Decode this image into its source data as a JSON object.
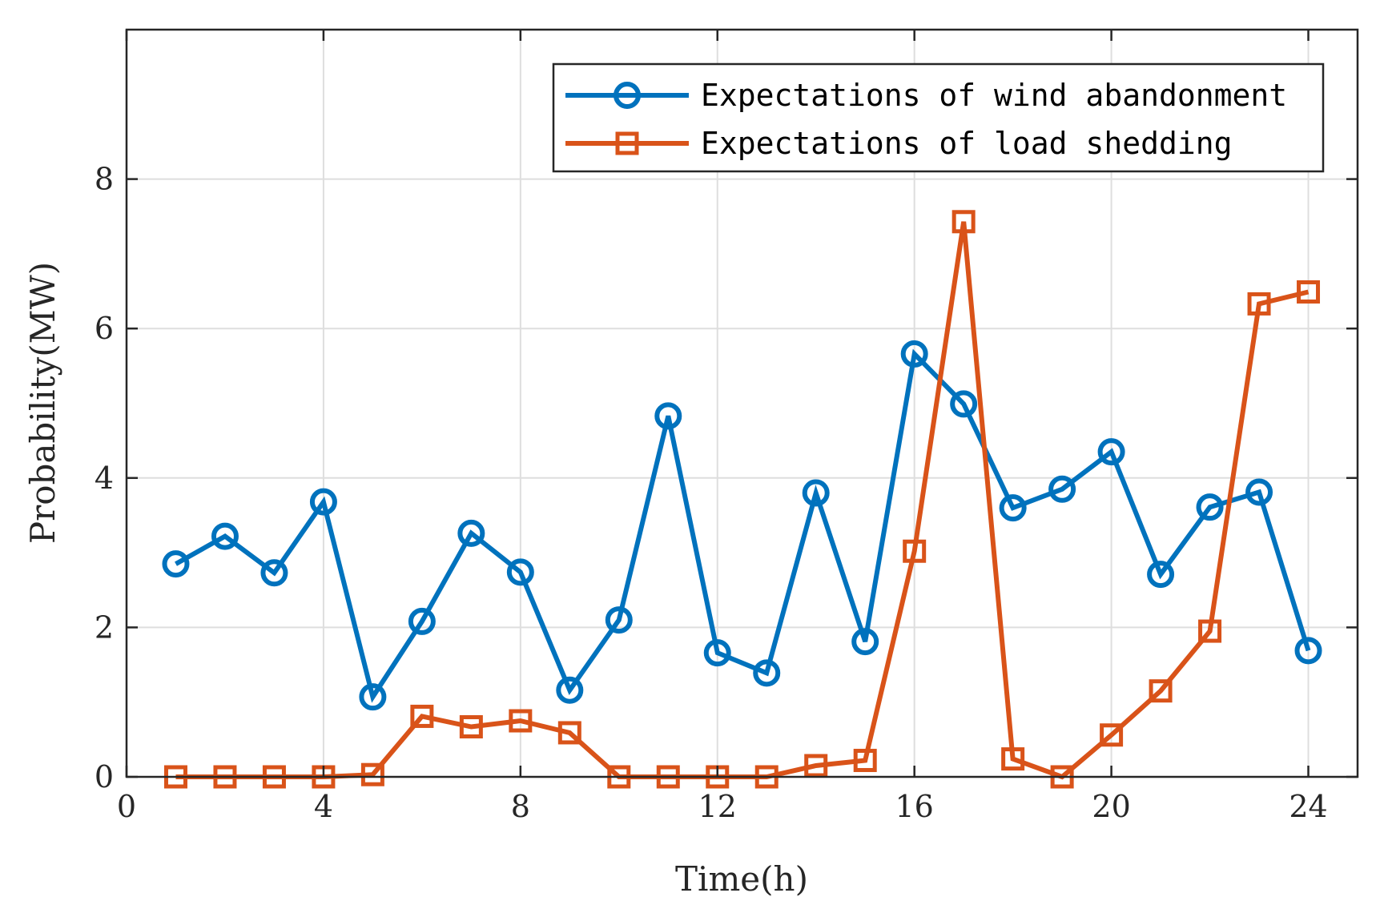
{
  "chart_data": {
    "type": "line",
    "title": "",
    "xlabel": "Time(h)",
    "ylabel": "Probability(MW)",
    "xlim": [
      0,
      25
    ],
    "ylim": [
      0,
      10
    ],
    "xticks": [
      0,
      4,
      8,
      12,
      16,
      20,
      24
    ],
    "yticks": [
      0,
      2,
      4,
      6,
      8
    ],
    "grid": true,
    "legend_position": "top-right",
    "x": [
      1,
      2,
      3,
      4,
      5,
      6,
      7,
      8,
      9,
      10,
      11,
      12,
      13,
      14,
      15,
      16,
      17,
      18,
      19,
      20,
      21,
      22,
      23,
      24
    ],
    "series": [
      {
        "name": "Expectations of wind abandonment",
        "color": "#0072BD",
        "marker": "circle",
        "values": [
          2.85,
          3.22,
          2.73,
          3.68,
          1.07,
          2.08,
          3.26,
          2.74,
          1.16,
          2.1,
          4.83,
          1.66,
          1.39,
          3.8,
          1.81,
          5.66,
          4.99,
          3.6,
          3.85,
          4.35,
          2.71,
          3.61,
          3.81,
          1.69
        ]
      },
      {
        "name": "Expectations of load shedding",
        "color": "#D95319",
        "marker": "square",
        "values": [
          0,
          0,
          0,
          0,
          0.03,
          0.81,
          0.67,
          0.75,
          0.59,
          0,
          0,
          0,
          0,
          0.15,
          0.22,
          3.02,
          7.43,
          0.24,
          0,
          0.56,
          1.15,
          1.95,
          6.33,
          6.49
        ]
      }
    ]
  }
}
